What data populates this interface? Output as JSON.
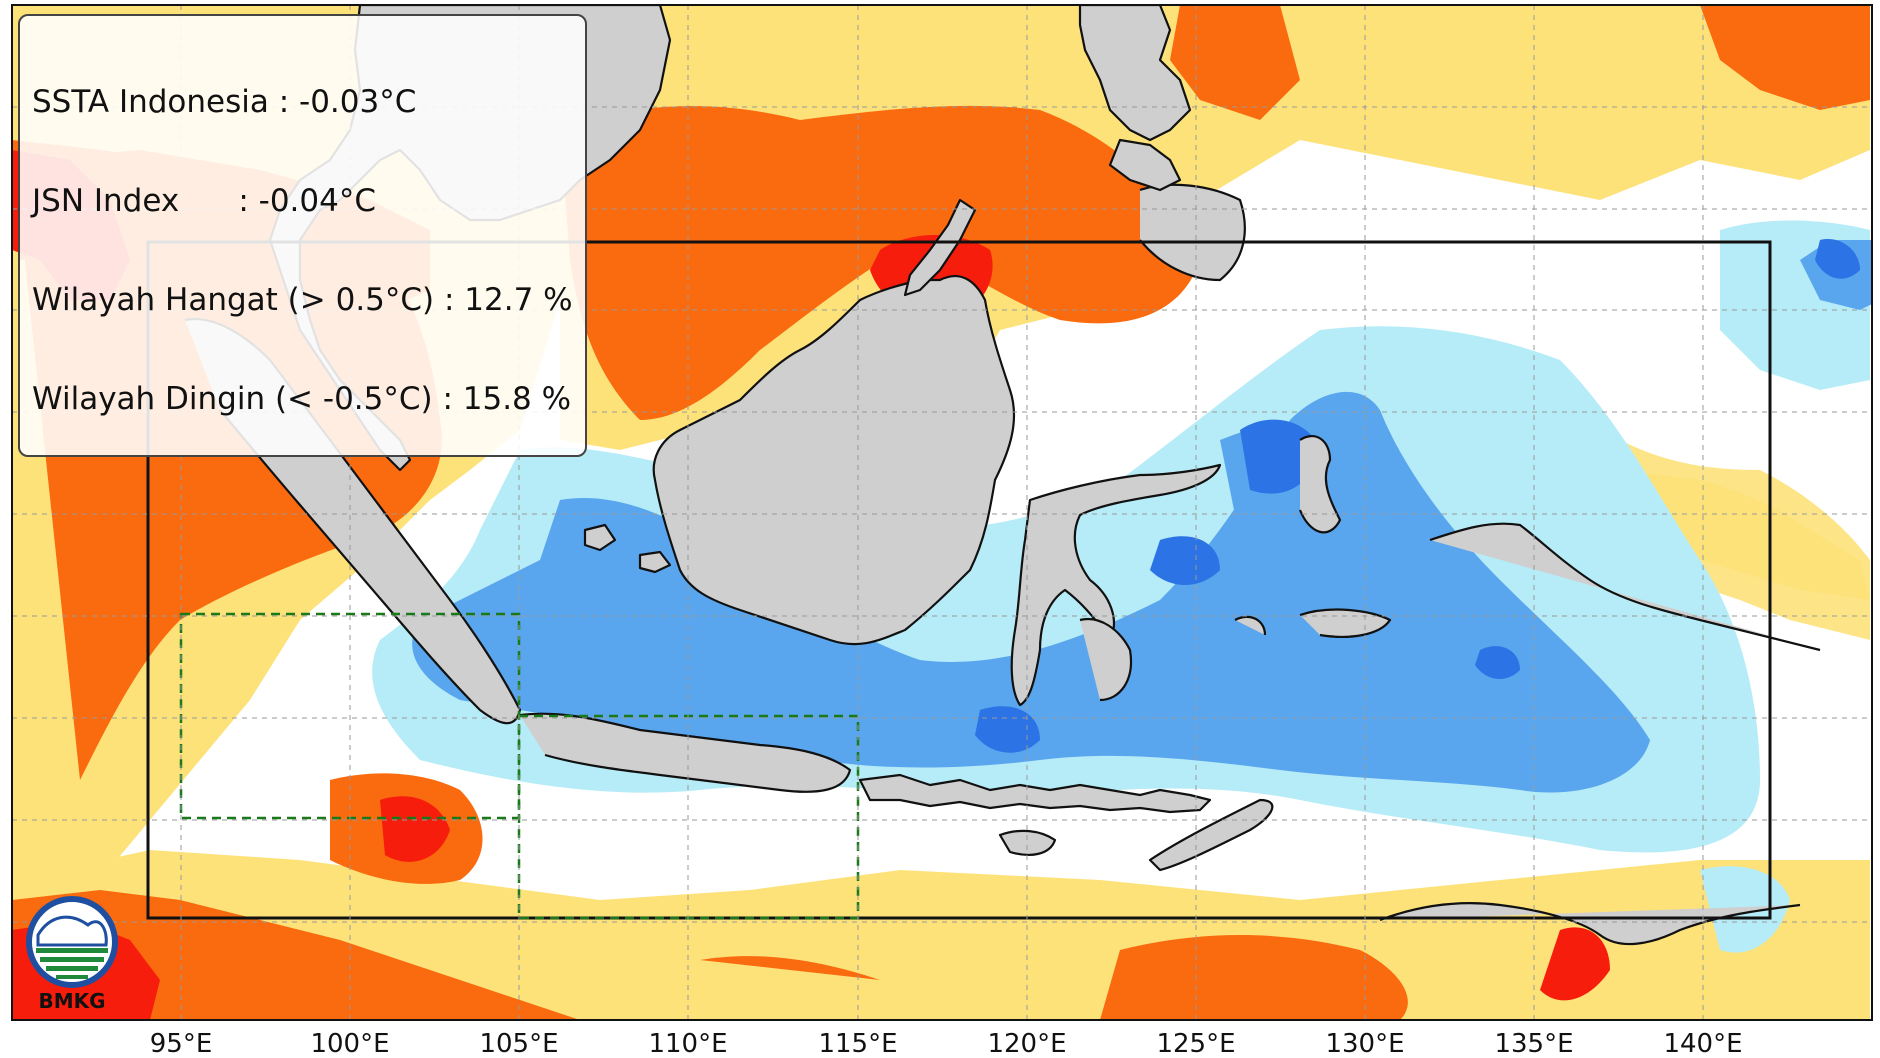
{
  "stats": {
    "ssta_indonesia": "SSTA Indonesia : -0.03°C",
    "jsn_index": "JSN Index      : -0.04°C",
    "wilayah_hangat": "Wilayah Hangat (> 0.5°C) : 12.7 %",
    "wilayah_dingin": "Wilayah Dingin (< -0.5°C) : 15.8 %"
  },
  "longitude_labels": [
    "95°E",
    "100°E",
    "105°E",
    "110°E",
    "115°E",
    "120°E",
    "125°E",
    "130°E",
    "135°E",
    "140°E"
  ],
  "logo": {
    "text": "BMKG"
  },
  "colors": {
    "land": "#cfcfcf",
    "coast": "#111111",
    "warm_light": "#fde27a",
    "warm_mid": "#fa6a0e",
    "warm_strong": "#f71d0c",
    "cool_light": "#b6ecf7",
    "cool_mid": "#5aa6ee",
    "cool_strong": "#2c73e6",
    "region_box": "#111111",
    "sub_box": "#1a7a1a"
  }
}
